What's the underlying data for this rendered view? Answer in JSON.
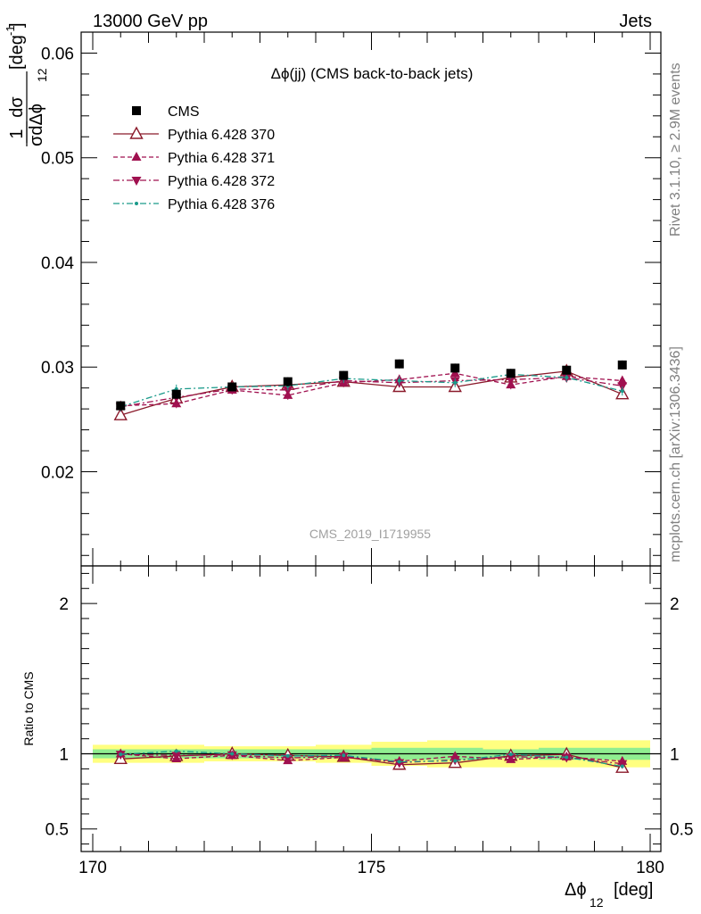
{
  "header": {
    "left": "13000 GeV pp",
    "right": "Jets"
  },
  "side": {
    "rivet": "Rivet 3.1.10, ≥ 2.9M events",
    "mcplots": "mcplots.cern.ch [arXiv:1306.3436]"
  },
  "plot_title": "Δϕ(jj) (CMS back-to-back jets)",
  "analysis_id": "CMS_2019_I1719955",
  "y_axis": {
    "prefix": "1",
    "num": "dσ",
    "den": "σdΔϕ",
    "den_sub": "12",
    "unit": "[deg",
    "unit_sup": "-1",
    "unit_close": "]"
  },
  "x_axis": {
    "label": "Δϕ",
    "sub": "12",
    "unit": "[deg]"
  },
  "ratio_label": "Ratio to CMS",
  "legend": [
    {
      "label": "CMS",
      "color": "#000000",
      "marker": "square",
      "line": "none"
    },
    {
      "label": "Pythia 6.428 370",
      "color": "#8b1a2b",
      "marker": "triangle-up-open",
      "line": "solid"
    },
    {
      "label": "Pythia 6.428 371",
      "color": "#a0104f",
      "marker": "triangle-up",
      "line": "dashed"
    },
    {
      "label": "Pythia 6.428 372",
      "color": "#a0104f",
      "marker": "triangle-down",
      "line": "dashdot"
    },
    {
      "label": "Pythia 6.428 376",
      "color": "#1a9a8a",
      "marker": "dot",
      "line": "dashdot"
    }
  ],
  "chart_data": {
    "type": "scatter",
    "x": [
      170.5,
      171.5,
      172.5,
      173.5,
      174.5,
      175.5,
      176.5,
      177.5,
      178.5,
      179.5
    ],
    "xlim": [
      170,
      180
    ],
    "ylim": [
      0.011,
      0.062
    ],
    "yticks": [
      0.02,
      0.03,
      0.04,
      0.05,
      0.06
    ],
    "ytick_labels": [
      "0.02",
      "0.03",
      "0.04",
      "0.05",
      "0.06"
    ],
    "xticks": [
      170,
      175,
      180
    ],
    "xtick_labels": [
      "170",
      "175",
      "180"
    ],
    "ratio_ylim": [
      0.35,
      2.25
    ],
    "ratio_yticks": [
      0.5,
      1,
      2
    ],
    "ratio_ytick_labels": [
      "0.5",
      "1",
      "2"
    ],
    "band_inner": [
      0.03,
      0.03,
      0.03,
      0.03,
      0.03,
      0.04,
      0.04,
      0.03,
      0.04,
      0.04
    ],
    "band_outer": [
      0.06,
      0.06,
      0.05,
      0.05,
      0.06,
      0.08,
      0.09,
      0.09,
      0.09,
      0.09
    ],
    "series": [
      {
        "name": "CMS",
        "values": [
          0.0263,
          0.0274,
          0.0281,
          0.0286,
          0.0292,
          0.0303,
          0.0299,
          0.0294,
          0.0297,
          0.0302
        ]
      },
      {
        "name": "Pythia 6.428 370",
        "values": [
          0.0254,
          0.027,
          0.0281,
          0.0283,
          0.0286,
          0.0281,
          0.0281,
          0.029,
          0.0296,
          0.0274
        ]
      },
      {
        "name": "Pythia 6.428 371",
        "values": [
          0.0263,
          0.0265,
          0.0278,
          0.0273,
          0.0285,
          0.0288,
          0.0294,
          0.0283,
          0.0291,
          0.0287
        ]
      },
      {
        "name": "Pythia 6.428 372",
        "values": [
          0.0262,
          0.0271,
          0.0279,
          0.0278,
          0.0287,
          0.0285,
          0.0287,
          0.0288,
          0.029,
          0.0282
        ]
      },
      {
        "name": "Pythia 6.428 376",
        "values": [
          0.0262,
          0.0279,
          0.0281,
          0.0282,
          0.0289,
          0.0287,
          0.0285,
          0.0293,
          0.029,
          0.0277
        ]
      }
    ]
  }
}
